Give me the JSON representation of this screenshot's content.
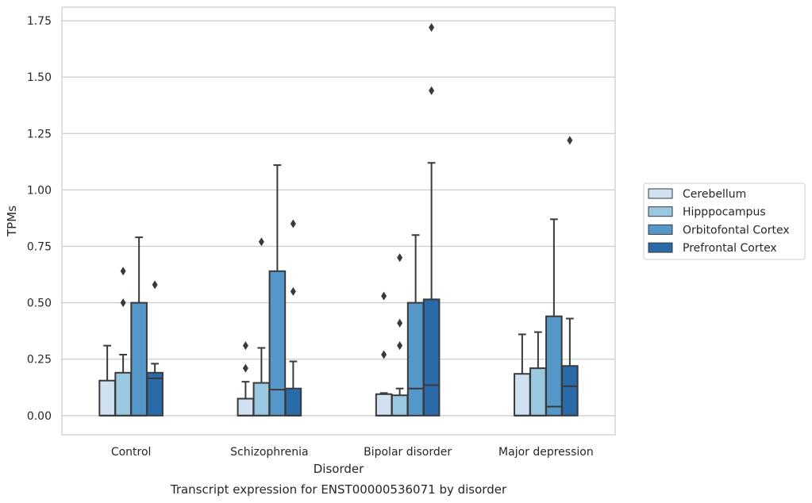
{
  "chart_data": {
    "type": "box",
    "title": "",
    "caption": "Transcript expression for ENST00000536071 by disorder",
    "xlabel": "Disorder",
    "ylabel": "TPMs",
    "ylim": [
      -0.085,
      1.81
    ],
    "yticks": [
      "0.00",
      "0.25",
      "0.50",
      "0.75",
      "1.00",
      "1.25",
      "1.50",
      "1.75"
    ],
    "ytick_values": [
      0,
      0.25,
      0.5,
      0.75,
      1.0,
      1.25,
      1.5,
      1.75
    ],
    "grid": true,
    "legend_placement": "right",
    "categories": [
      "Control",
      "Schizophrenia",
      "Bipolar disorder",
      "Major depression"
    ],
    "series": [
      {
        "name": "Cerebellum",
        "color": "#d0e1f2",
        "boxes": [
          {
            "min": 0.0,
            "q1": 0.0,
            "median": 0.0,
            "q3": 0.155,
            "max": 0.31,
            "outliers": []
          },
          {
            "min": 0.0,
            "q1": 0.0,
            "median": 0.0,
            "q3": 0.075,
            "max": 0.15,
            "outliers": [
              0.21,
              0.31
            ]
          },
          {
            "min": 0.0,
            "q1": 0.0,
            "median": 0.0,
            "q3": 0.095,
            "max": 0.1,
            "outliers": [
              0.27,
              0.53
            ]
          },
          {
            "min": 0.0,
            "q1": 0.0,
            "median": 0.0,
            "q3": 0.185,
            "max": 0.36,
            "outliers": []
          }
        ]
      },
      {
        "name": "Hipppocampus",
        "color": "#9ac8e0",
        "boxes": [
          {
            "min": 0.0,
            "q1": 0.0,
            "median": 0.0,
            "q3": 0.19,
            "max": 0.27,
            "outliers": [
              0.5,
              0.64
            ]
          },
          {
            "min": 0.0,
            "q1": 0.0,
            "median": 0.0,
            "q3": 0.145,
            "max": 0.3,
            "outliers": [
              0.77
            ]
          },
          {
            "min": 0.0,
            "q1": 0.0,
            "median": 0.0,
            "q3": 0.09,
            "max": 0.12,
            "outliers": [
              0.31,
              0.41,
              0.7
            ]
          },
          {
            "min": 0.0,
            "q1": 0.0,
            "median": 0.0,
            "q3": 0.21,
            "max": 0.37,
            "outliers": []
          }
        ]
      },
      {
        "name": "Orbitofontal Cortex",
        "color": "#5597c9",
        "boxes": [
          {
            "min": 0.0,
            "q1": 0.0,
            "median": 0.0,
            "q3": 0.5,
            "max": 0.79,
            "outliers": []
          },
          {
            "min": 0.0,
            "q1": 0.0,
            "median": 0.115,
            "q3": 0.64,
            "max": 1.11,
            "outliers": []
          },
          {
            "min": 0.0,
            "q1": 0.0,
            "median": 0.12,
            "q3": 0.5,
            "max": 0.8,
            "outliers": []
          },
          {
            "min": 0.0,
            "q1": 0.0,
            "median": 0.04,
            "q3": 0.44,
            "max": 0.87,
            "outliers": []
          }
        ]
      },
      {
        "name": "Prefrontal Cortex",
        "color": "#2b6aa8",
        "boxes": [
          {
            "min": 0.0,
            "q1": 0.0,
            "median": 0.165,
            "q3": 0.19,
            "max": 0.23,
            "outliers": [
              0.58
            ]
          },
          {
            "min": 0.0,
            "q1": 0.0,
            "median": 0.0,
            "q3": 0.12,
            "max": 0.24,
            "outliers": [
              0.55,
              0.85
            ]
          },
          {
            "min": 0.0,
            "q1": 0.0,
            "median": 0.135,
            "q3": 0.515,
            "max": 1.12,
            "outliers": [
              1.44,
              1.72
            ]
          },
          {
            "min": 0.0,
            "q1": 0.0,
            "median": 0.13,
            "q3": 0.22,
            "max": 0.43,
            "outliers": [
              1.22
            ]
          }
        ]
      }
    ]
  }
}
